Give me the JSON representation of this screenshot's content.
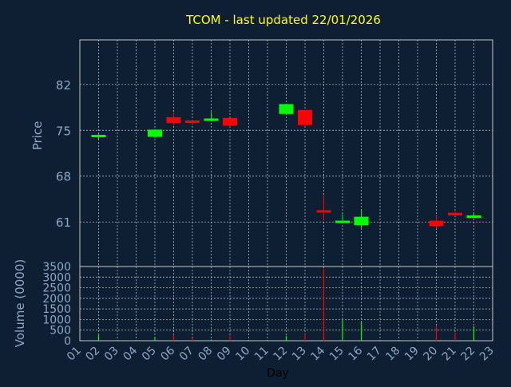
{
  "title": "TCOM - last updated 22/01/2026",
  "colors": {
    "background": "#0e1f33",
    "title": "#ffff00",
    "axis_text": "#8ba8c8",
    "grid": "#c8c8c8",
    "up": "#00ff00",
    "down": "#ff0000",
    "frame": "#c8c8c8",
    "xlabel": "#000000"
  },
  "chart_data": [
    {
      "type": "candlestick",
      "ylabel": "Price",
      "ylim": [
        54.2,
        88.8
      ],
      "yticks": [
        61,
        68,
        75,
        82
      ],
      "grid": true,
      "candles": [
        {
          "day": 2,
          "open": 74.0,
          "close": 74.3,
          "high": 74.5,
          "low": 73.6,
          "dir": "up"
        },
        {
          "day": 5,
          "open": 74.0,
          "close": 75.1,
          "high": 75.2,
          "low": 73.8,
          "dir": "up"
        },
        {
          "day": 6,
          "open": 77.0,
          "close": 76.1,
          "high": 77.7,
          "low": 75.8,
          "dir": "down"
        },
        {
          "day": 7,
          "open": 76.5,
          "close": 76.2,
          "high": 76.6,
          "low": 76.0,
          "dir": "down"
        },
        {
          "day": 8,
          "open": 76.7,
          "close": 76.8,
          "high": 77.8,
          "low": 76.6,
          "dir": "up"
        },
        {
          "day": 9,
          "open": 76.9,
          "close": 75.7,
          "high": 76.9,
          "low": 75.6,
          "dir": "down"
        },
        {
          "day": 12,
          "open": 77.5,
          "close": 79.0,
          "high": 79.0,
          "low": 77.5,
          "dir": "up"
        },
        {
          "day": 13,
          "open": 78.1,
          "close": 75.8,
          "high": 78.1,
          "low": 75.7,
          "dir": "down"
        },
        {
          "day": 14,
          "open": 62.8,
          "close": 62.6,
          "high": 65.1,
          "low": 61.2,
          "dir": "down"
        },
        {
          "day": 15,
          "open": 60.9,
          "close": 61.2,
          "high": 62.2,
          "low": 60.9,
          "dir": "up"
        },
        {
          "day": 16,
          "open": 60.5,
          "close": 61.8,
          "high": 62.9,
          "low": 60.1,
          "dir": "up"
        },
        {
          "day": 20,
          "open": 61.2,
          "close": 60.4,
          "high": 61.9,
          "low": 60.0,
          "dir": "down"
        },
        {
          "day": 21,
          "open": 62.4,
          "close": 62.0,
          "high": 62.6,
          "low": 61.9,
          "dir": "down"
        },
        {
          "day": 22,
          "open": 61.7,
          "close": 62.0,
          "high": 62.4,
          "low": 61.6,
          "dir": "up"
        }
      ]
    },
    {
      "type": "bar",
      "ylabel": "Volume (0000)",
      "xlabel": "Day",
      "ylim": [
        0,
        3500
      ],
      "yticks": [
        0,
        500,
        1000,
        1500,
        2000,
        2500,
        3000,
        3500
      ],
      "categories": [
        "01",
        "02",
        "03",
        "04",
        "05",
        "06",
        "07",
        "08",
        "09",
        "10",
        "11",
        "12",
        "13",
        "14",
        "15",
        "16",
        "17",
        "18",
        "19",
        "20",
        "21",
        "22",
        "23"
      ],
      "grid": true,
      "volumes": [
        {
          "day": 2,
          "value": 300,
          "dir": "up"
        },
        {
          "day": 5,
          "value": 150,
          "dir": "up"
        },
        {
          "day": 6,
          "value": 280,
          "dir": "down"
        },
        {
          "day": 7,
          "value": 120,
          "dir": "down"
        },
        {
          "day": 8,
          "value": 60,
          "dir": "up"
        },
        {
          "day": 9,
          "value": 250,
          "dir": "down"
        },
        {
          "day": 12,
          "value": 230,
          "dir": "up"
        },
        {
          "day": 13,
          "value": 320,
          "dir": "down"
        },
        {
          "day": 14,
          "value": 3400,
          "dir": "down"
        },
        {
          "day": 15,
          "value": 980,
          "dir": "up"
        },
        {
          "day": 16,
          "value": 900,
          "dir": "up"
        },
        {
          "day": 20,
          "value": 700,
          "dir": "down"
        },
        {
          "day": 21,
          "value": 380,
          "dir": "down"
        },
        {
          "day": 22,
          "value": 680,
          "dir": "up"
        }
      ]
    }
  ]
}
